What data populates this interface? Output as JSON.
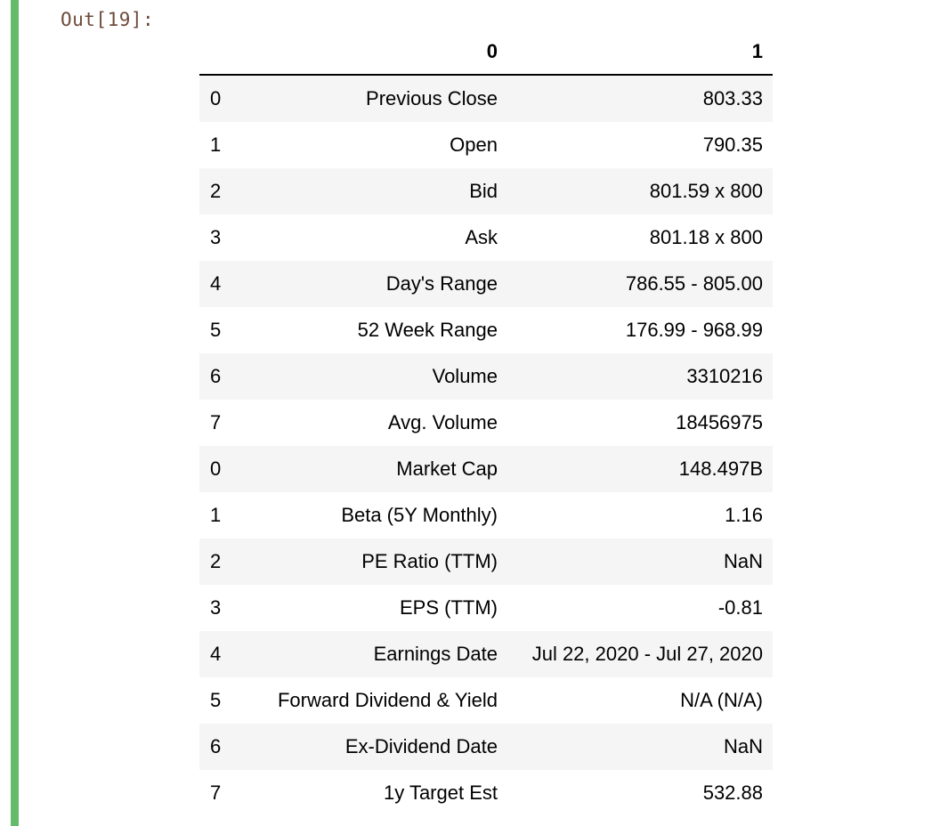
{
  "cell": {
    "prompt": "Out[19]:",
    "accent_color": "#66bb6a"
  },
  "table": {
    "columns": [
      "",
      "0",
      "1"
    ],
    "rows": [
      {
        "index": "0",
        "c0": "Previous Close",
        "c1": "803.33"
      },
      {
        "index": "1",
        "c0": "Open",
        "c1": "790.35"
      },
      {
        "index": "2",
        "c0": "Bid",
        "c1": "801.59 x 800"
      },
      {
        "index": "3",
        "c0": "Ask",
        "c1": "801.18 x 800"
      },
      {
        "index": "4",
        "c0": "Day's Range",
        "c1": "786.55 - 805.00"
      },
      {
        "index": "5",
        "c0": "52 Week Range",
        "c1": "176.99 - 968.99"
      },
      {
        "index": "6",
        "c0": "Volume",
        "c1": "3310216"
      },
      {
        "index": "7",
        "c0": "Avg. Volume",
        "c1": "18456975"
      },
      {
        "index": "0",
        "c0": "Market Cap",
        "c1": "148.497B"
      },
      {
        "index": "1",
        "c0": "Beta (5Y Monthly)",
        "c1": "1.16"
      },
      {
        "index": "2",
        "c0": "PE Ratio (TTM)",
        "c1": "NaN"
      },
      {
        "index": "3",
        "c0": "EPS (TTM)",
        "c1": "-0.81"
      },
      {
        "index": "4",
        "c0": "Earnings Date",
        "c1": "Jul 22, 2020 - Jul 27, 2020"
      },
      {
        "index": "5",
        "c0": "Forward Dividend & Yield",
        "c1": "N/A (N/A)"
      },
      {
        "index": "6",
        "c0": "Ex-Dividend Date",
        "c1": "NaN"
      },
      {
        "index": "7",
        "c0": "1y Target Est",
        "c1": "532.88"
      }
    ]
  }
}
